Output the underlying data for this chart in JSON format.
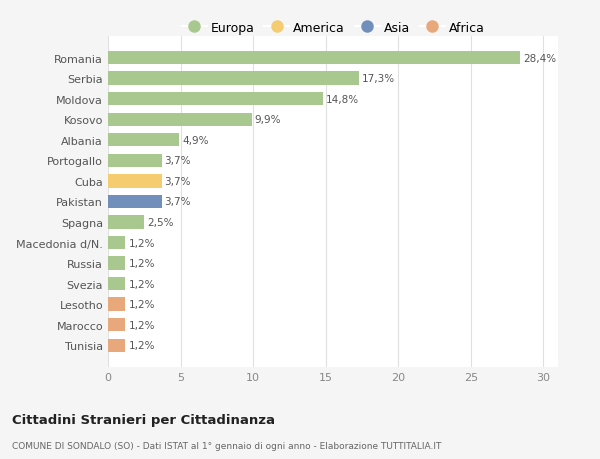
{
  "categories": [
    "Tunisia",
    "Marocco",
    "Lesotho",
    "Svezia",
    "Russia",
    "Macedonia d/N.",
    "Spagna",
    "Pakistan",
    "Cuba",
    "Portogallo",
    "Albania",
    "Kosovo",
    "Moldova",
    "Serbia",
    "Romania"
  ],
  "values": [
    1.2,
    1.2,
    1.2,
    1.2,
    1.2,
    1.2,
    2.5,
    3.7,
    3.7,
    3.7,
    4.9,
    9.9,
    14.8,
    17.3,
    28.4
  ],
  "labels": [
    "1,2%",
    "1,2%",
    "1,2%",
    "1,2%",
    "1,2%",
    "1,2%",
    "2,5%",
    "3,7%",
    "3,7%",
    "3,7%",
    "4,9%",
    "9,9%",
    "14,8%",
    "17,3%",
    "28,4%"
  ],
  "colors": [
    "#e8a87c",
    "#e8a87c",
    "#e8a87c",
    "#a8c88f",
    "#a8c88f",
    "#a8c88f",
    "#a8c88f",
    "#7090bb",
    "#f5cc70",
    "#a8c88f",
    "#a8c88f",
    "#a8c88f",
    "#a8c88f",
    "#a8c88f",
    "#a8c88f"
  ],
  "legend_labels": [
    "Europa",
    "America",
    "Asia",
    "Africa"
  ],
  "legend_colors": [
    "#a8c88f",
    "#f5cc70",
    "#7090bb",
    "#e8a87c"
  ],
  "title": "Cittadini Stranieri per Cittadinanza",
  "subtitle": "COMUNE DI SONDALO (SO) - Dati ISTAT al 1° gennaio di ogni anno - Elaborazione TUTTITALIA.IT",
  "xlim": [
    0,
    31
  ],
  "xticks": [
    0,
    5,
    10,
    15,
    20,
    25,
    30
  ],
  "background_color": "#f5f5f5",
  "plot_bg_color": "#ffffff",
  "grid_color": "#e0e0e0",
  "bar_height": 0.65
}
